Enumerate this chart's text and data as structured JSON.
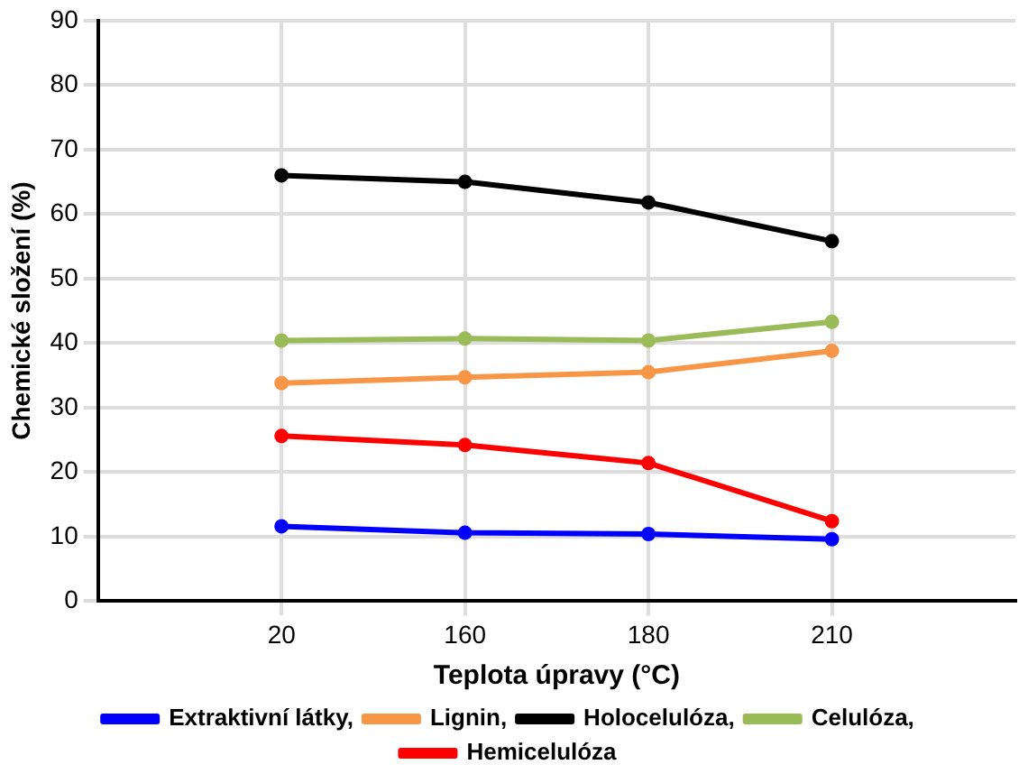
{
  "chart_data": {
    "type": "line",
    "xlabel": "Teplota úpravy (°C)",
    "ylabel": "Chemické složení (%)",
    "categories": [
      "20",
      "160",
      "180",
      "210"
    ],
    "series": [
      {
        "name": "Extraktivní látky,",
        "color": "#0000ff",
        "values": [
          11.6,
          10.6,
          10.4,
          9.6
        ]
      },
      {
        "name": "Lignin,",
        "color": "#f79646",
        "values": [
          33.8,
          34.7,
          35.5,
          38.8
        ]
      },
      {
        "name": "Holocelulóza,",
        "color": "#000000",
        "values": [
          66,
          65,
          61.8,
          55.8
        ]
      },
      {
        "name": "Celulóza,",
        "color": "#9bbb59",
        "values": [
          40.4,
          40.7,
          40.4,
          43.3
        ]
      },
      {
        "name": "Hemicelulóza",
        "color": "#ff0000",
        "values": [
          25.6,
          24.2,
          21.4,
          12.4
        ]
      }
    ],
    "ylim": [
      0,
      90
    ],
    "yticks": [
      0,
      10,
      20,
      30,
      40,
      50,
      60,
      70,
      80,
      90
    ],
    "grid": true,
    "legend": "bottom",
    "marker": "circle",
    "line_style": "solid"
  }
}
